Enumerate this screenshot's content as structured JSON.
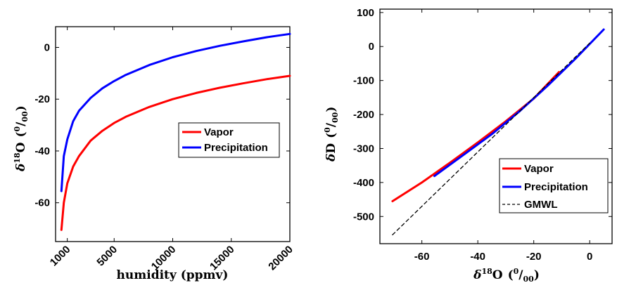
{
  "chart_data": [
    {
      "type": "line",
      "title": "",
      "xlabel": "humidity (ppmv)",
      "ylabel": "δ18O (0/00)",
      "xlim": [
        0,
        20000
      ],
      "ylim": [
        -75,
        8
      ],
      "x_ticks": [
        "1000",
        "5000",
        "10000",
        "15000",
        "20000"
      ],
      "y_ticks": [
        "0",
        "-20",
        "-40",
        "-60"
      ],
      "grid": false,
      "legend_position": "center-right",
      "series": [
        {
          "name": "Vapor",
          "color": "#ff0000",
          "x": [
            500,
            700,
            1000,
            1500,
            2000,
            3000,
            4000,
            5000,
            6000,
            8000,
            10000,
            12000,
            14000,
            16000,
            18000,
            20000
          ],
          "y": [
            -70.5,
            -60,
            -52.5,
            -46,
            -42,
            -36,
            -32.2,
            -29.2,
            -26.8,
            -23,
            -20,
            -17.6,
            -15.6,
            -13.9,
            -12.3,
            -11
          ]
        },
        {
          "name": "Precipitation",
          "color": "#0000ff",
          "x": [
            500,
            700,
            1000,
            1500,
            2000,
            3000,
            4000,
            5000,
            6000,
            8000,
            10000,
            12000,
            14000,
            16000,
            18000,
            20000
          ],
          "y": [
            -55.5,
            -42,
            -35.5,
            -28.5,
            -24.5,
            -19.5,
            -15.8,
            -13,
            -10.6,
            -6.8,
            -3.8,
            -1.4,
            0.6,
            2.3,
            3.9,
            5.2
          ]
        }
      ]
    },
    {
      "type": "line",
      "title": "",
      "xlabel": "δ18O (0/00)",
      "ylabel": "δD (0/00)",
      "xlim": [
        -75,
        8
      ],
      "ylim": [
        -580,
        110
      ],
      "x_ticks": [
        "-60",
        "-40",
        "-20",
        "0"
      ],
      "y_ticks": [
        "100",
        "0",
        "-100",
        "-200",
        "-300",
        "-400",
        "-500"
      ],
      "grid": false,
      "legend_position": "bottom-right",
      "series": [
        {
          "name": "Vapor",
          "color": "#ff0000",
          "x": [
            -70.5,
            -60,
            -50,
            -40,
            -30,
            -20,
            -11
          ],
          "y": [
            -455,
            -400,
            -342,
            -282,
            -220,
            -153,
            -75
          ]
        },
        {
          "name": "Precipitation",
          "color": "#0000ff",
          "x": [
            -55.5,
            -45,
            -35,
            -25,
            -15,
            -5,
            5
          ],
          "y": [
            -381,
            -318,
            -258,
            -190,
            -115,
            -35,
            50
          ]
        },
        {
          "name": "GMWL",
          "color": "#000000",
          "dashed": true,
          "x": [
            -70.5,
            -60,
            -40,
            -20,
            0
          ],
          "y": [
            -554,
            -470,
            -310,
            -150,
            10
          ]
        }
      ]
    }
  ],
  "labels": {
    "left_ylabel_delta": "δ",
    "left_ylabel_sup": "18",
    "left_ylabel_main": "O",
    "left_ylabel_unit_open": "(",
    "left_ylabel_unit_sup": "0",
    "left_ylabel_unit_slash": "/",
    "left_ylabel_unit_sub": "00",
    "left_ylabel_unit_close": ")",
    "right_ylabel_delta": "δ",
    "right_ylabel_main": "D",
    "right_ylabel_unit_open": "(",
    "right_ylabel_unit_sup": "0",
    "right_ylabel_unit_slash": "/",
    "right_ylabel_unit_sub": "00",
    "right_ylabel_unit_close": ")",
    "right_xlabel_delta": "δ",
    "right_xlabel_sup": "18",
    "right_xlabel_main": "O",
    "right_xlabel_unit_open": "(",
    "right_xlabel_unit_sup": "0",
    "right_xlabel_unit_slash": "/",
    "right_xlabel_unit_sub": "00",
    "right_xlabel_unit_close": ")"
  }
}
